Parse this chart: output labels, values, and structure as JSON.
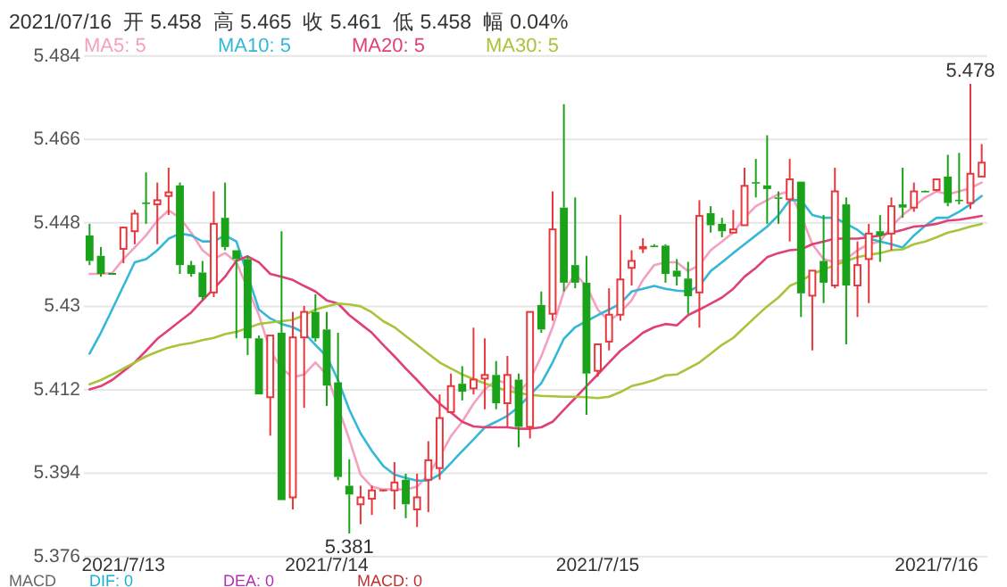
{
  "chart_data": {
    "type": "candlestick",
    "title": "2021/07/16  开 5.458  高 5.465  收 5.461  低 5.458  幅 0.04%",
    "categories": [
      null,
      null,
      null,
      "2021/7/13",
      null,
      null,
      null,
      null,
      null,
      null,
      null,
      null,
      null,
      null,
      null,
      null,
      null,
      null,
      null,
      null,
      null,
      "2021/7/14",
      null,
      null,
      null,
      null,
      null,
      null,
      null,
      null,
      null,
      null,
      null,
      null,
      null,
      null,
      null,
      null,
      null,
      null,
      null,
      null,
      null,
      null,
      null,
      "2021/7/15",
      null,
      null,
      null,
      null,
      null,
      null,
      null,
      null,
      null,
      null,
      null,
      null,
      null,
      null,
      null,
      null,
      null,
      null,
      null,
      null,
      null,
      null,
      null,
      null,
      null,
      null,
      null,
      null,
      null,
      "2021/7/16",
      null,
      null,
      null,
      null
    ],
    "ohlc": [
      [
        5.4453,
        5.4478,
        5.4389,
        5.4398
      ],
      [
        5.4409,
        5.4428,
        5.4364,
        5.437
      ],
      [
        5.437,
        5.4372,
        5.4368,
        5.437
      ],
      [
        5.4424,
        5.4472,
        5.4393,
        5.447
      ],
      [
        5.4462,
        5.4508,
        5.4434,
        5.45
      ],
      [
        5.4524,
        5.4589,
        5.4478,
        5.4522
      ],
      [
        5.452,
        5.4567,
        5.4434,
        5.4529
      ],
      [
        5.4538,
        5.4599,
        5.4497,
        5.4546
      ],
      [
        5.4561,
        5.4567,
        5.437,
        5.4389
      ],
      [
        5.4389,
        5.4398,
        5.4364,
        5.437
      ],
      [
        5.4373,
        5.4398,
        5.4313,
        5.432
      ],
      [
        5.433,
        5.4548,
        5.432,
        5.4478
      ],
      [
        5.4491,
        5.4567,
        5.4421,
        5.4428
      ],
      [
        5.4421,
        5.4421,
        5.4231,
        5.4402
      ],
      [
        5.4402,
        5.4409,
        5.4195,
        5.4231
      ],
      [
        5.4231,
        5.4237,
        5.411,
        5.411
      ],
      [
        5.4104,
        5.4237,
        5.4021,
        5.4237
      ],
      [
        5.4243,
        5.4462,
        5.3882,
        5.3882
      ],
      [
        5.3888,
        5.4288,
        5.3862,
        5.4233
      ],
      [
        5.4233,
        5.4301,
        5.4081,
        5.4288
      ],
      [
        5.4288,
        5.4326,
        5.4224,
        5.4231
      ],
      [
        5.425,
        5.4288,
        5.4085,
        5.4129
      ],
      [
        5.4136,
        5.4243,
        5.3925,
        5.3932
      ],
      [
        5.3913,
        5.397,
        5.381,
        5.3894
      ],
      [
        5.3873,
        5.3913,
        5.383,
        5.3888
      ],
      [
        5.3885,
        5.3913,
        5.385,
        5.3903
      ],
      [
        5.3903,
        5.3905,
        5.3901,
        5.3903
      ],
      [
        5.3903,
        5.3964,
        5.3862,
        5.392
      ],
      [
        5.3926,
        5.3939,
        5.3843,
        5.3873
      ],
      [
        5.3862,
        5.3939,
        5.3824,
        5.3888
      ],
      [
        5.3926,
        5.4009,
        5.3856,
        5.3968
      ],
      [
        5.3951,
        5.411,
        5.3926,
        5.4059
      ],
      [
        5.4072,
        5.4155,
        5.4072,
        5.4128
      ],
      [
        5.4133,
        5.4171,
        5.4097,
        5.4116
      ],
      [
        5.4123,
        5.4254,
        5.411,
        5.4142
      ],
      [
        5.4144,
        5.4231,
        5.4078,
        5.4152
      ],
      [
        5.4152,
        5.4182,
        5.4078,
        5.4091
      ],
      [
        5.4091,
        5.4193,
        5.404,
        5.4152
      ],
      [
        5.4142,
        5.4155,
        5.3996,
        5.404
      ],
      [
        5.404,
        5.4288,
        5.4015,
        5.4288
      ],
      [
        5.4303,
        5.4332,
        5.4243,
        5.425
      ],
      [
        5.4284,
        5.4548,
        5.4269,
        5.4466
      ],
      [
        5.4513,
        5.4736,
        5.4332,
        5.4351
      ],
      [
        5.4389,
        5.4535,
        5.4339,
        5.4351
      ],
      [
        5.4351,
        5.4409,
        5.4066,
        5.4155
      ],
      [
        5.4161,
        5.4218,
        5.4148,
        5.4218
      ],
      [
        5.4224,
        5.4339,
        5.4205,
        5.4282
      ],
      [
        5.4282,
        5.4497,
        5.4269,
        5.4358
      ],
      [
        5.4383,
        5.4421,
        5.4345,
        5.4398
      ],
      [
        5.4426,
        5.4447,
        5.4415,
        5.4428
      ],
      [
        5.4431,
        5.4434,
        5.4428,
        5.443
      ],
      [
        5.4431,
        5.4434,
        5.4351,
        5.437
      ],
      [
        5.4377,
        5.4402,
        5.4345,
        5.4364
      ],
      [
        5.436,
        5.4396,
        5.4284,
        5.4322
      ],
      [
        5.433,
        5.4529,
        5.4254,
        5.4495
      ],
      [
        5.4501,
        5.4516,
        5.4459,
        5.4475
      ],
      [
        5.4478,
        5.4491,
        5.4449,
        5.4462
      ],
      [
        5.4459,
        5.4508,
        5.4459,
        5.4466
      ],
      [
        5.4475,
        5.4599,
        5.4475,
        5.456
      ],
      [
        5.4568,
        5.4618,
        5.4535,
        5.4566
      ],
      [
        5.4561,
        5.4669,
        5.4478,
        5.4553
      ],
      [
        5.4535,
        5.4548,
        5.4478,
        5.4533
      ],
      [
        5.4531,
        5.4618,
        5.444,
        5.4574
      ],
      [
        5.4569,
        5.4569,
        5.4277,
        5.4328
      ],
      [
        5.4323,
        5.4377,
        5.4205,
        5.4377
      ],
      [
        5.4398,
        5.4497,
        5.4307,
        5.4351
      ],
      [
        5.4345,
        5.4599,
        5.4339,
        5.4548
      ],
      [
        5.452,
        5.4535,
        5.4218,
        5.4345
      ],
      [
        5.4345,
        5.444,
        5.4277,
        5.4389
      ],
      [
        5.4402,
        5.4478,
        5.4307,
        5.4457
      ],
      [
        5.4462,
        5.4497,
        5.4396,
        5.4453
      ],
      [
        5.4457,
        5.4535,
        5.4421,
        5.4516
      ],
      [
        5.452,
        5.4599,
        5.4491,
        5.4513
      ],
      [
        5.4513,
        5.4567,
        5.4504,
        5.4548
      ],
      [
        5.4549,
        5.455,
        5.4547,
        5.4548
      ],
      [
        5.4551,
        5.4574,
        5.4548,
        5.4574
      ],
      [
        5.458,
        5.4627,
        5.4516,
        5.4523
      ],
      [
        5.453,
        5.4631,
        5.452,
        5.4529
      ],
      [
        5.4523,
        5.478,
        5.451,
        5.4586
      ],
      [
        5.458,
        5.465,
        5.458,
        5.461
      ]
    ],
    "colors": [
      "#1aa31a",
      "#1aa31a",
      "#1aa31a",
      "#e8383d",
      "#e8383d",
      "#1aa31a",
      "#e8383d",
      "#e8383d",
      "#1aa31a",
      "#1aa31a",
      "#1aa31a",
      "#e8383d",
      "#1aa31a",
      "#1aa31a",
      "#1aa31a",
      "#1aa31a",
      "#e8383d",
      "#1aa31a",
      "#e8383d",
      "#e8383d",
      "#1aa31a",
      "#1aa31a",
      "#1aa31a",
      "#1aa31a",
      "#e8383d",
      "#e8383d",
      "#e8383d",
      "#e8383d",
      "#1aa31a",
      "#e8383d",
      "#e8383d",
      "#e8383d",
      "#e8383d",
      "#1aa31a",
      "#e8383d",
      "#e8383d",
      "#1aa31a",
      "#e8383d",
      "#1aa31a",
      "#e8383d",
      "#1aa31a",
      "#e8383d",
      "#1aa31a",
      "#1aa31a",
      "#1aa31a",
      "#e8383d",
      "#e8383d",
      "#e8383d",
      "#e8383d",
      "#e8383d",
      "#1aa31a",
      "#1aa31a",
      "#1aa31a",
      "#1aa31a",
      "#e8383d",
      "#1aa31a",
      "#1aa31a",
      "#e8383d",
      "#e8383d",
      "#1aa31a",
      "#1aa31a",
      "#1aa31a",
      "#e8383d",
      "#1aa31a",
      "#e8383d",
      "#1aa31a",
      "#e8383d",
      "#1aa31a",
      "#e8383d",
      "#e8383d",
      "#1aa31a",
      "#e8383d",
      "#1aa31a",
      "#e8383d",
      "#1aa31a",
      "#e8383d",
      "#1aa31a",
      "#1aa31a",
      "#e8383d",
      "#e8383d"
    ],
    "series": [
      {
        "name": "MA5: 5",
        "type": "line",
        "color": "#f4a0c0",
        "values": [
          5.437,
          5.437,
          5.4372,
          5.4402,
          5.4427,
          5.4453,
          5.4485,
          5.4507,
          5.4491,
          5.4459,
          5.4421,
          5.4402,
          5.4415,
          5.4395,
          null,
          5.4281,
          5.4204,
          5.4166,
          5.4147,
          5.4153,
          5.4179,
          5.4153,
          null,
          5.4013,
          5.3937,
          5.3911,
          5.3905,
          5.3905,
          5.3905,
          5.3911,
          5.3937,
          5.3975,
          5.402,
          5.4051,
          5.409,
          5.4121,
          5.4141,
          5.4134,
          5.4115,
          5.4141,
          5.4192,
          5.4255,
          5.4332,
          5.437,
          5.4344,
          5.4293,
          5.4268,
          5.4287,
          5.4313,
          5.4357,
          5.4389,
          5.4395,
          5.4395,
          5.4376,
          5.4389,
          5.4421,
          5.444,
          5.4459,
          5.4491,
          5.4516,
          5.4529,
          5.4542,
          5.4548,
          5.4497,
          5.4434,
          5.4402,
          5.4395,
          5.4402,
          5.4421,
          5.4434,
          5.444,
          5.4472,
          5.4497,
          5.4516,
          5.4535,
          5.4548,
          5.4542,
          5.4548,
          5.4555,
          5.4567
        ]
      },
      {
        "name": "MA10: 5",
        "type": "line",
        "color": "#35b8d8",
        "values": [
          5.4198,
          5.4243,
          5.4293,
          5.4344,
          5.4395,
          5.4402,
          5.4421,
          5.4446,
          5.4457,
          5.4453,
          5.444,
          5.444,
          5.4453,
          5.444,
          null,
          5.4293,
          5.4274,
          5.4262,
          5.4255,
          5.4243,
          5.4217,
          5.4192,
          5.4141,
          5.4077,
          5.4026,
          5.3988,
          5.3956,
          5.3937,
          5.393,
          5.3924,
          5.3924,
          5.3937,
          5.3962,
          5.3988,
          5.4013,
          5.4039,
          5.4051,
          5.4064,
          5.4083,
          5.4109,
          5.4134,
          5.4179,
          5.423,
          5.4255,
          5.4268,
          5.4281,
          5.4293,
          5.4306,
          5.4332,
          5.4338,
          5.4344,
          5.4338,
          5.4334,
          5.4332,
          5.4344,
          5.4376,
          5.4395,
          5.4415,
          5.4434,
          5.4453,
          5.4472,
          5.4497,
          5.4529,
          5.4529,
          5.4497,
          5.4491,
          5.4491,
          5.4478,
          5.4465,
          5.4446,
          5.444,
          5.4434,
          5.4427,
          5.4453,
          5.4474,
          5.4491,
          5.4491,
          5.4504,
          5.452,
          5.4538
        ]
      },
      {
        "name": "MA20: 5",
        "type": "line",
        "color": "#e0407a",
        "values": [
          5.4121,
          5.4128,
          5.4141,
          5.416,
          5.4179,
          5.4204,
          5.423,
          5.4249,
          5.4268,
          5.4287,
          5.4313,
          5.4338,
          5.4364,
          5.4398,
          5.4408,
          5.4395,
          5.437,
          5.4364,
          5.4357,
          5.4344,
          5.4332,
          5.4313,
          5.4306,
          5.4281,
          5.4262,
          5.4243,
          5.4217,
          5.4192,
          5.4166,
          5.4141,
          5.4115,
          5.409,
          5.4071,
          5.4051,
          5.4041,
          5.4039,
          5.4039,
          5.4039,
          5.4036,
          5.4036,
          5.4039,
          5.4051,
          5.4077,
          5.4102,
          5.4128,
          5.4153,
          5.4179,
          5.4204,
          5.4223,
          5.4243,
          5.4255,
          5.4262,
          5.4259,
          5.4281,
          5.4293,
          5.4306,
          5.4319,
          5.4338,
          5.4364,
          5.4383,
          5.4406,
          5.4415,
          5.4421,
          5.4423,
          5.4434,
          5.444,
          5.4446,
          5.4446,
          5.4446,
          5.4449,
          5.4453,
          5.4459,
          5.4465,
          5.4472,
          5.4474,
          5.4478,
          5.4485,
          5.4487,
          5.4491,
          5.4495
        ]
      },
      {
        "name": "MA30: 5",
        "type": "line",
        "color": "#a8c43a",
        "values": [
          5.4132,
          5.4141,
          5.4153,
          5.4166,
          5.4179,
          5.4192,
          5.4202,
          5.4211,
          5.4217,
          5.4221,
          5.4227,
          5.4232,
          5.424,
          5.4245,
          5.4253,
          5.4262,
          5.4265,
          5.4268,
          5.4271,
          5.4281,
          5.4293,
          5.43,
          5.4306,
          5.4304,
          5.43,
          5.4287,
          5.4268,
          5.4255,
          5.4236,
          5.4217,
          5.4198,
          5.4179,
          5.4166,
          5.4153,
          5.4143,
          5.4134,
          5.4125,
          5.4118,
          5.4113,
          5.4109,
          5.4107,
          5.4106,
          5.4105,
          5.4105,
          5.4104,
          5.4102,
          5.4105,
          5.4115,
          5.4128,
          5.4134,
          5.4141,
          5.4151,
          5.4153,
          5.4166,
          5.4179,
          5.4198,
          5.4217,
          5.4232,
          5.4255,
          5.4278,
          5.43,
          5.4319,
          5.4344,
          5.4355,
          5.437,
          5.4379,
          5.4389,
          5.4398,
          5.4406,
          5.4411,
          5.4415,
          5.4421,
          5.4423,
          5.4434,
          5.444,
          5.4449,
          5.4459,
          5.4465,
          5.4472,
          5.4478
        ]
      }
    ],
    "ylim": [
      5.376,
      5.484
    ],
    "yticks": [
      5.376,
      5.394,
      5.412,
      5.43,
      5.448,
      5.466,
      5.484
    ],
    "grid": "y",
    "legend": "top left",
    "annotations": [
      {
        "text": "5.478",
        "y": 5.478
      },
      {
        "text": "5.381",
        "y": 5.381
      },
      "MACD",
      "DIF: 0",
      "DEA: 0",
      "MACD: 0"
    ]
  }
}
